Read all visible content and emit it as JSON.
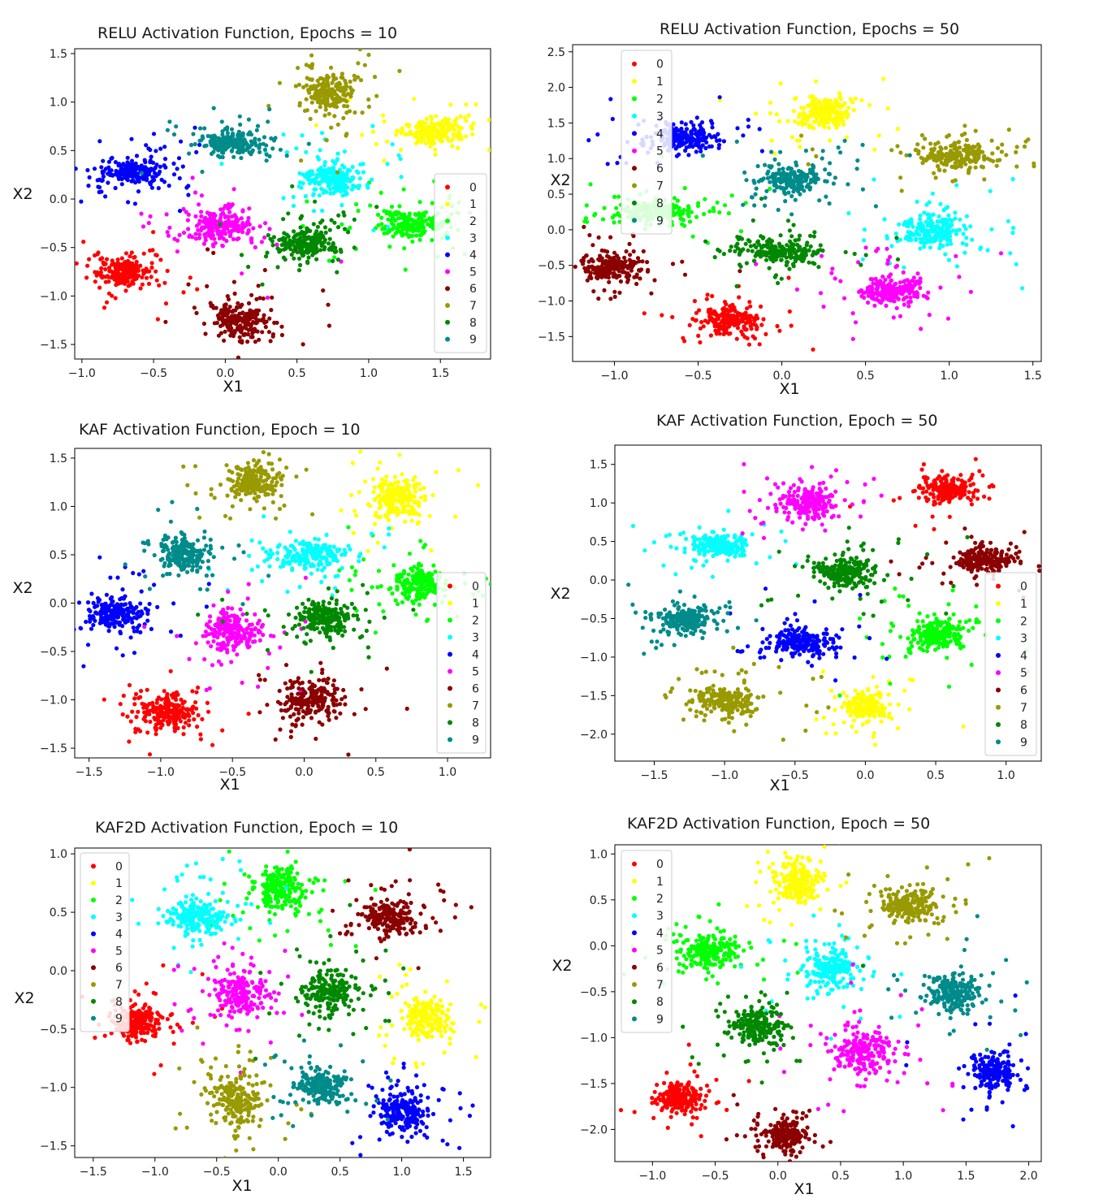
{
  "chart_data": [
    {
      "type": "scatter",
      "title": "RELU Activation Function, Epochs = 10",
      "xlabel": "X1",
      "ylabel": "X2",
      "xlim": [
        -1.05,
        1.85
      ],
      "ylim": [
        -1.65,
        1.55
      ],
      "xticks": [
        "−1.0",
        "−0.5",
        "0.0",
        "0.5",
        "1.0",
        "1.5"
      ],
      "xtick_values": [
        -1.0,
        -0.5,
        0.0,
        0.5,
        1.0,
        1.5
      ],
      "yticks": [
        "1.5",
        "1.0",
        "0.5",
        "0.0",
        "−0.5",
        "−1.0",
        "−1.5"
      ],
      "ytick_values": [
        1.5,
        1.0,
        0.5,
        0.0,
        -0.5,
        -1.0,
        -1.5
      ],
      "legend": "right",
      "clusters": [
        {
          "label": "0",
          "color": "#ff0000",
          "center": [
            -0.72,
            -0.75
          ],
          "spread": [
            0.09,
            0.07
          ]
        },
        {
          "label": "1",
          "color": "#ffff00",
          "center": [
            1.45,
            0.7
          ],
          "spread": [
            0.11,
            0.06
          ]
        },
        {
          "label": "2",
          "color": "#00ff00",
          "center": [
            1.3,
            -0.25
          ],
          "spread": [
            0.13,
            0.08
          ]
        },
        {
          "label": "3",
          "color": "#00ffff",
          "center": [
            0.75,
            0.2
          ],
          "spread": [
            0.1,
            0.08
          ]
        },
        {
          "label": "4",
          "color": "#0000ff",
          "center": [
            -0.65,
            0.28
          ],
          "spread": [
            0.12,
            0.07
          ]
        },
        {
          "label": "5",
          "color": "#ff00ff",
          "center": [
            -0.02,
            -0.28
          ],
          "spread": [
            0.1,
            0.08
          ]
        },
        {
          "label": "6",
          "color": "#8b0000",
          "center": [
            0.1,
            -1.25
          ],
          "spread": [
            0.1,
            0.1
          ]
        },
        {
          "label": "7",
          "color": "#999900",
          "center": [
            0.72,
            1.08
          ],
          "spread": [
            0.08,
            0.1
          ]
        },
        {
          "label": "8",
          "color": "#008800",
          "center": [
            0.55,
            -0.47
          ],
          "spread": [
            0.1,
            0.08
          ]
        },
        {
          "label": "9",
          "color": "#008b8b",
          "center": [
            0.05,
            0.58
          ],
          "spread": [
            0.1,
            0.06
          ]
        }
      ]
    },
    {
      "type": "scatter",
      "title": "RELU Activation Function, Epochs = 50",
      "xlabel": "X1",
      "ylabel": "X2",
      "xlim": [
        -1.25,
        1.55
      ],
      "ylim": [
        -1.85,
        2.6
      ],
      "xticks": [
        "−1.0",
        "−0.5",
        "0.0",
        "0.5",
        "1.0",
        "1.5"
      ],
      "xtick_values": [
        -1.0,
        -0.5,
        0.0,
        0.5,
        1.0,
        1.5
      ],
      "yticks": [
        "2.5",
        "2.0",
        "1.5",
        "1.0",
        "0.5",
        "0.0",
        "−0.5",
        "−1.0",
        "−1.5"
      ],
      "ytick_values": [
        2.5,
        2.0,
        1.5,
        1.0,
        0.5,
        0.0,
        -0.5,
        -1.0,
        -1.5
      ],
      "legend": "upper left",
      "clusters": [
        {
          "label": "0",
          "color": "#ff0000",
          "center": [
            -0.33,
            -1.28
          ],
          "spread": [
            0.08,
            0.09
          ]
        },
        {
          "label": "1",
          "color": "#ffff00",
          "center": [
            0.25,
            1.65
          ],
          "spread": [
            0.08,
            0.1
          ]
        },
        {
          "label": "2",
          "color": "#00ff00",
          "center": [
            -0.75,
            0.25
          ],
          "spread": [
            0.12,
            0.08
          ]
        },
        {
          "label": "3",
          "color": "#00ffff",
          "center": [
            0.9,
            -0.02
          ],
          "spread": [
            0.1,
            0.12
          ]
        },
        {
          "label": "4",
          "color": "#0000ff",
          "center": [
            -0.6,
            1.3
          ],
          "spread": [
            0.1,
            0.09
          ]
        },
        {
          "label": "5",
          "color": "#ff00ff",
          "center": [
            0.65,
            -0.85
          ],
          "spread": [
            0.1,
            0.1
          ]
        },
        {
          "label": "6",
          "color": "#8b0000",
          "center": [
            -1.02,
            -0.52
          ],
          "spread": [
            0.09,
            0.1
          ]
        },
        {
          "label": "7",
          "color": "#999900",
          "center": [
            1.05,
            1.05
          ],
          "spread": [
            0.12,
            0.09
          ]
        },
        {
          "label": "8",
          "color": "#008800",
          "center": [
            -0.02,
            -0.3
          ],
          "spread": [
            0.12,
            0.1
          ]
        },
        {
          "label": "9",
          "color": "#008b8b",
          "center": [
            0.05,
            0.7
          ],
          "spread": [
            0.1,
            0.1
          ]
        }
      ]
    },
    {
      "type": "scatter",
      "title": "KAF Activation Function, Epoch = 10",
      "xlabel": "X1",
      "ylabel": "X2",
      "xlim": [
        -1.6,
        1.3
      ],
      "ylim": [
        -1.6,
        1.6
      ],
      "xticks": [
        "−1.5",
        "−1.0",
        "−0.5",
        "0.0",
        "0.5",
        "1.0"
      ],
      "xtick_values": [
        -1.5,
        -1.0,
        -0.5,
        0.0,
        0.5,
        1.0
      ],
      "yticks": [
        "1.5",
        "1.0",
        "0.5",
        "0.0",
        "−0.5",
        "−1.0",
        "−1.5"
      ],
      "ytick_values": [
        1.5,
        1.0,
        0.5,
        0.0,
        -0.5,
        -1.0,
        -1.5
      ],
      "legend": "right",
      "clusters": [
        {
          "label": "0",
          "color": "#ff0000",
          "center": [
            -0.95,
            -1.12
          ],
          "spread": [
            0.09,
            0.08
          ]
        },
        {
          "label": "1",
          "color": "#ffff00",
          "center": [
            0.65,
            1.1
          ],
          "spread": [
            0.08,
            0.1
          ]
        },
        {
          "label": "2",
          "color": "#00ff00",
          "center": [
            0.8,
            0.2
          ],
          "spread": [
            0.11,
            0.09
          ]
        },
        {
          "label": "3",
          "color": "#00ffff",
          "center": [
            0.05,
            0.5
          ],
          "spread": [
            0.11,
            0.07
          ]
        },
        {
          "label": "4",
          "color": "#0000ff",
          "center": [
            -1.3,
            -0.12
          ],
          "spread": [
            0.1,
            0.08
          ]
        },
        {
          "label": "5",
          "color": "#ff00ff",
          "center": [
            -0.5,
            -0.3
          ],
          "spread": [
            0.09,
            0.1
          ]
        },
        {
          "label": "6",
          "color": "#8b0000",
          "center": [
            0.05,
            -1.0
          ],
          "spread": [
            0.09,
            0.09
          ]
        },
        {
          "label": "7",
          "color": "#999900",
          "center": [
            -0.35,
            1.25
          ],
          "spread": [
            0.09,
            0.08
          ]
        },
        {
          "label": "8",
          "color": "#008800",
          "center": [
            0.15,
            -0.15
          ],
          "spread": [
            0.1,
            0.08
          ]
        },
        {
          "label": "9",
          "color": "#008b8b",
          "center": [
            -0.85,
            0.5
          ],
          "spread": [
            0.08,
            0.08
          ]
        }
      ]
    },
    {
      "type": "scatter",
      "title": "KAF Activation Function, Epoch = 50",
      "xlabel": "X1",
      "ylabel": "X2",
      "xlim": [
        -1.78,
        1.25
      ],
      "ylim": [
        -2.35,
        1.75
      ],
      "xticks": [
        "−1.5",
        "−1.0",
        "−0.5",
        "0.0",
        "0.5",
        "1.0"
      ],
      "xtick_values": [
        -1.5,
        -1.0,
        -0.5,
        0.0,
        0.5,
        1.0
      ],
      "yticks": [
        "1.5",
        "1.0",
        "0.5",
        "0.0",
        "−0.5",
        "−1.0",
        "−1.5",
        "−2.0"
      ],
      "ytick_values": [
        1.5,
        1.0,
        0.5,
        0.0,
        -0.5,
        -1.0,
        -1.5,
        -2.0
      ],
      "legend": "lower right",
      "clusters": [
        {
          "label": "0",
          "color": "#ff0000",
          "center": [
            0.58,
            1.18
          ],
          "spread": [
            0.09,
            0.08
          ]
        },
        {
          "label": "1",
          "color": "#ffff00",
          "center": [
            0.0,
            -1.65
          ],
          "spread": [
            0.07,
            0.08
          ]
        },
        {
          "label": "2",
          "color": "#00ff00",
          "center": [
            0.5,
            -0.7
          ],
          "spread": [
            0.11,
            0.1
          ]
        },
        {
          "label": "3",
          "color": "#00ffff",
          "center": [
            -1.05,
            0.45
          ],
          "spread": [
            0.11,
            0.08
          ]
        },
        {
          "label": "4",
          "color": "#0000ff",
          "center": [
            -0.45,
            -0.8
          ],
          "spread": [
            0.1,
            0.08
          ]
        },
        {
          "label": "5",
          "color": "#ff00ff",
          "center": [
            -0.4,
            1.0
          ],
          "spread": [
            0.1,
            0.1
          ]
        },
        {
          "label": "6",
          "color": "#8b0000",
          "center": [
            0.85,
            0.25
          ],
          "spread": [
            0.09,
            0.08
          ]
        },
        {
          "label": "7",
          "color": "#999900",
          "center": [
            -1.0,
            -1.58
          ],
          "spread": [
            0.11,
            0.1
          ]
        },
        {
          "label": "8",
          "color": "#008800",
          "center": [
            -0.15,
            0.1
          ],
          "spread": [
            0.11,
            0.1
          ]
        },
        {
          "label": "9",
          "color": "#008b8b",
          "center": [
            -1.28,
            -0.52
          ],
          "spread": [
            0.09,
            0.08
          ]
        }
      ]
    },
    {
      "type": "scatter",
      "title": "KAF2D Activation Function, Epoch = 10",
      "xlabel": "X1",
      "ylabel": "X2",
      "xlim": [
        -1.65,
        1.72
      ],
      "ylim": [
        -1.6,
        1.05
      ],
      "xticks": [
        "−1.5",
        "−1.0",
        "−0.5",
        "0.0",
        "0.5",
        "1.0",
        "1.5"
      ],
      "xtick_values": [
        -1.5,
        -1.0,
        -0.5,
        0.0,
        0.5,
        1.0,
        1.5
      ],
      "yticks": [
        "1.0",
        "0.5",
        "0.0",
        "−0.5",
        "−1.0",
        "−1.5"
      ],
      "ytick_values": [
        1.0,
        0.5,
        0.0,
        -0.5,
        -1.0,
        -1.5
      ],
      "legend": "upper left",
      "clusters": [
        {
          "label": "0",
          "color": "#ff0000",
          "center": [
            -1.15,
            -0.45
          ],
          "spread": [
            0.09,
            0.07
          ]
        },
        {
          "label": "1",
          "color": "#ffff00",
          "center": [
            1.2,
            -0.4
          ],
          "spread": [
            0.08,
            0.08
          ]
        },
        {
          "label": "2",
          "color": "#00ff00",
          "center": [
            0.0,
            0.7
          ],
          "spread": [
            0.1,
            0.09
          ]
        },
        {
          "label": "3",
          "color": "#00ffff",
          "center": [
            -0.65,
            0.45
          ],
          "spread": [
            0.11,
            0.08
          ]
        },
        {
          "label": "4",
          "color": "#0000ff",
          "center": [
            1.0,
            -1.22
          ],
          "spread": [
            0.1,
            0.09
          ]
        },
        {
          "label": "5",
          "color": "#ff00ff",
          "center": [
            -0.3,
            -0.2
          ],
          "spread": [
            0.1,
            0.1
          ]
        },
        {
          "label": "6",
          "color": "#8b0000",
          "center": [
            0.9,
            0.45
          ],
          "spread": [
            0.11,
            0.07
          ]
        },
        {
          "label": "7",
          "color": "#999900",
          "center": [
            -0.35,
            -1.12
          ],
          "spread": [
            0.1,
            0.1
          ]
        },
        {
          "label": "8",
          "color": "#008800",
          "center": [
            0.42,
            -0.18
          ],
          "spread": [
            0.11,
            0.1
          ]
        },
        {
          "label": "9",
          "color": "#008b8b",
          "center": [
            0.35,
            -0.98
          ],
          "spread": [
            0.11,
            0.07
          ]
        }
      ]
    },
    {
      "type": "scatter",
      "title": "KAF2D Activation Function, Epoch = 50",
      "xlabel": "X1",
      "ylabel": "X2",
      "xlim": [
        -1.3,
        2.1
      ],
      "ylim": [
        -2.35,
        1.1
      ],
      "xticks": [
        "−1.0",
        "−0.5",
        "0.0",
        "0.5",
        "1.0",
        "1.5",
        "2.0"
      ],
      "xtick_values": [
        -1.0,
        -0.5,
        0.0,
        0.5,
        1.0,
        1.5,
        2.0
      ],
      "yticks": [
        "1.0",
        "0.5",
        "0.0",
        "−0.5",
        "−1.0",
        "−1.5",
        "−2.0"
      ],
      "ytick_values": [
        1.0,
        0.5,
        0.0,
        -0.5,
        -1.0,
        -1.5,
        -2.0
      ],
      "legend": "upper left",
      "clusters": [
        {
          "label": "0",
          "color": "#ff0000",
          "center": [
            -0.78,
            -1.65
          ],
          "spread": [
            0.09,
            0.07
          ]
        },
        {
          "label": "1",
          "color": "#ffff00",
          "center": [
            0.15,
            0.7
          ],
          "spread": [
            0.08,
            0.1
          ]
        },
        {
          "label": "2",
          "color": "#00ff00",
          "center": [
            -0.55,
            -0.05
          ],
          "spread": [
            0.11,
            0.09
          ]
        },
        {
          "label": "3",
          "color": "#00ffff",
          "center": [
            0.4,
            -0.25
          ],
          "spread": [
            0.1,
            0.1
          ]
        },
        {
          "label": "4",
          "color": "#0000ff",
          "center": [
            1.72,
            -1.38
          ],
          "spread": [
            0.09,
            0.09
          ]
        },
        {
          "label": "5",
          "color": "#ff00ff",
          "center": [
            0.68,
            -1.15
          ],
          "spread": [
            0.11,
            0.12
          ]
        },
        {
          "label": "6",
          "color": "#8b0000",
          "center": [
            0.05,
            -2.05
          ],
          "spread": [
            0.09,
            0.08
          ]
        },
        {
          "label": "7",
          "color": "#999900",
          "center": [
            1.05,
            0.45
          ],
          "spread": [
            0.11,
            0.09
          ]
        },
        {
          "label": "8",
          "color": "#008800",
          "center": [
            -0.15,
            -0.88
          ],
          "spread": [
            0.1,
            0.1
          ]
        },
        {
          "label": "9",
          "color": "#008b8b",
          "center": [
            1.38,
            -0.5
          ],
          "spread": [
            0.11,
            0.1
          ]
        }
      ]
    }
  ]
}
